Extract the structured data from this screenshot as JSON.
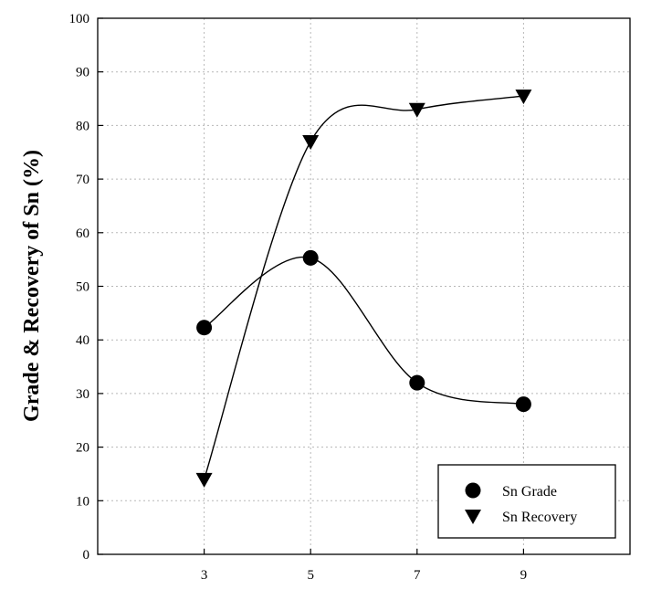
{
  "chart_data": {
    "type": "line",
    "title": "",
    "xlabel": "",
    "ylabel": "Grade & Recovery of Sn (%)",
    "xlim": [
      1,
      11
    ],
    "ylim": [
      0,
      100
    ],
    "x": [
      3,
      5,
      7,
      9
    ],
    "x_ticks": [
      3,
      5,
      7,
      9
    ],
    "y_ticks": [
      0,
      10,
      20,
      30,
      40,
      50,
      60,
      70,
      80,
      90,
      100
    ],
    "grid": true,
    "legend_position": "bottom-right",
    "series": [
      {
        "name": "Sn Grade",
        "marker": "circle",
        "values": [
          42.3,
          55.3,
          32.0,
          28.0
        ]
      },
      {
        "name": "Sn Recovery",
        "marker": "triangle-down",
        "values": [
          14.0,
          77.0,
          83.0,
          85.5
        ]
      }
    ],
    "colors": {
      "marker": "#000000",
      "line": "#000000",
      "grid": "#b8b8b8"
    }
  }
}
